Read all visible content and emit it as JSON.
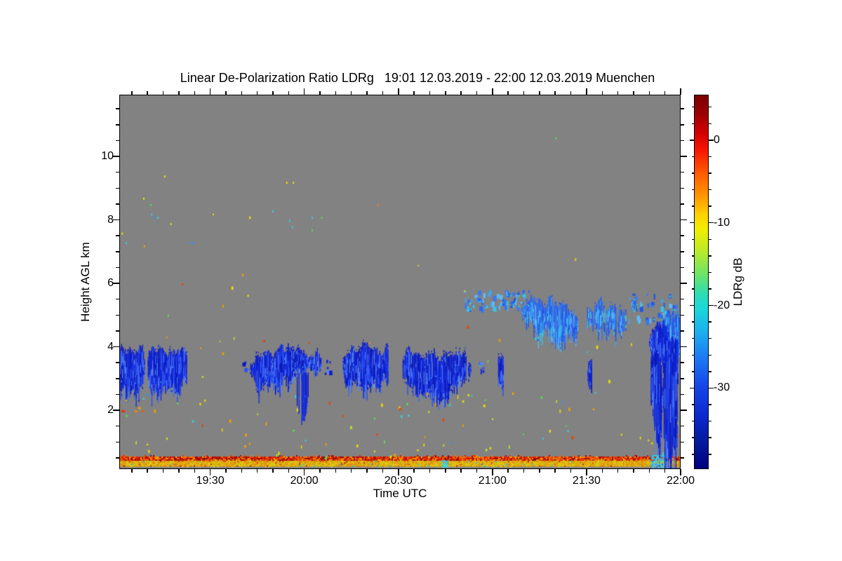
{
  "title": "Linear De-Polarization Ratio LDRg   19:01 12.03.2019 - 22:00 12.03.2019 Muenchen",
  "axes": {
    "x": {
      "label": "Time UTC",
      "start": "19:01",
      "end": "22:00",
      "major_ticks": [
        {
          "t_min": 30,
          "label": "19:30"
        },
        {
          "t_min": 60,
          "label": "20:00"
        },
        {
          "t_min": 90,
          "label": "20:30"
        },
        {
          "t_min": 120,
          "label": "21:00"
        },
        {
          "t_min": 150,
          "label": "21:30"
        },
        {
          "t_min": 180,
          "label": "22:00"
        }
      ],
      "minor_step_min": 5
    },
    "y": {
      "label": "Height AGL km",
      "min_km": 0.14,
      "max_km": 11.95,
      "major_ticks": [
        {
          "km": 2,
          "label": "2"
        },
        {
          "km": 4,
          "label": "4"
        },
        {
          "km": 6,
          "label": "6"
        },
        {
          "km": 8,
          "label": "8"
        },
        {
          "km": 10,
          "label": "10"
        }
      ],
      "minor_step_km": 0.5
    },
    "colorbar": {
      "label": "LDRg dB",
      "value_top_db": 5.5,
      "value_bottom_db": -39.8,
      "major_ticks": [
        {
          "db": 0,
          "label": "0"
        },
        {
          "db": -10,
          "label": "-10"
        },
        {
          "db": -20,
          "label": "-20"
        },
        {
          "db": -30,
          "label": "-30"
        }
      ],
      "minor_step_db": 2
    }
  },
  "chart_data": {
    "type": "heatmap",
    "title": "Linear De-Polarization Ratio LDRg 19:01 12.03.2019 - 22:00 12.03.2019 Muenchen",
    "station": "Muenchen",
    "date": "12.03.2019",
    "xlabel": "Time UTC",
    "ylabel": "Height AGL km",
    "x_range": [
      "19:01",
      "22:00"
    ],
    "y_range_km": [
      0.14,
      11.95
    ],
    "colorbar": {
      "label": "LDRg dB",
      "range_db": [
        -39.8,
        5.5
      ]
    },
    "background": "uniform gray = no signal / below detection",
    "features": {
      "cloud_layers": [
        {
          "id": "cloud-a",
          "time": "19:01-19:09",
          "t0": 1,
          "t1": 9,
          "h_top_km": 3.95,
          "h_bot_km": 2.75,
          "mode": "solid",
          "palette": "deepblue",
          "flat_left": true,
          "ldr_db": -32
        },
        {
          "id": "cloud-b",
          "time": "19:09-19:23",
          "t0": 9.5,
          "t1": 23,
          "h_top_km": 3.8,
          "h_bot_km": 2.85,
          "mode": "solid",
          "palette": "deepblue",
          "ldr_db": -32
        },
        {
          "id": "wisp-1",
          "time": "19:40-19:42",
          "t0": 40,
          "t1": 42,
          "h_top_km": 3.6,
          "h_bot_km": 3.25,
          "mode": "scatter",
          "density": 0.5,
          "palette": "deepblue",
          "ldr_db": -32
        },
        {
          "id": "cloud-c",
          "time": "19:43-20:06",
          "t0": 42.5,
          "t1": 66,
          "h_top_km": 3.9,
          "h_bot_km": 2.95,
          "mode": "solid",
          "palette": "deepblue",
          "top_profile": [
            [
              0,
              3.75
            ],
            [
              0.4,
              3.8
            ],
            [
              0.75,
              3.95
            ],
            [
              1,
              3.8
            ]
          ],
          "bot_profile": [
            [
              0,
              3.05
            ],
            [
              0.5,
              2.9
            ],
            [
              0.8,
              3.2
            ],
            [
              1,
              3.1
            ]
          ],
          "ldr_db": -32
        },
        {
          "id": "cloud-c-virga",
          "time": "19:57-20:01",
          "t0": 57,
          "t1": 61.5,
          "h_top_km": 3.1,
          "h_bot_km": 1.6,
          "mode": "virga",
          "palette": "deepblue",
          "ldr_db": -31
        },
        {
          "id": "cloud-c-wisp",
          "time": "20:06-20:08",
          "t0": 66,
          "t1": 68.5,
          "h_top_km": 3.6,
          "h_bot_km": 3.1,
          "mode": "scatter",
          "density": 0.55,
          "palette": "deepblue",
          "ldr_db": -32
        },
        {
          "id": "cloud-d",
          "time": "20:12-20:27",
          "t0": 72,
          "t1": 87.5,
          "h_top_km": 3.85,
          "h_bot_km": 2.9,
          "mode": "solid",
          "palette": "deepblue",
          "ldr_db": -32
        },
        {
          "id": "cloud-e",
          "time": "20:30-20:53",
          "t0": 90.5,
          "t1": 113,
          "h_top_km": 3.8,
          "h_bot_km": 2.8,
          "mode": "solid",
          "palette": "deepblue",
          "bot_profile": [
            [
              0,
              3.0
            ],
            [
              0.3,
              2.65
            ],
            [
              0.6,
              2.5
            ],
            [
              0.8,
              2.95
            ],
            [
              1,
              3.0
            ]
          ],
          "ldr_db": -32
        },
        {
          "id": "streak-1",
          "time": "20:55-20:57",
          "t0": 115.5,
          "t1": 117.5,
          "h_top_km": 3.55,
          "h_bot_km": 3.0,
          "mode": "scatter",
          "density": 0.6,
          "palette": "deepblue",
          "ldr_db": -31
        },
        {
          "id": "streak-2",
          "time": "21:01-21:03",
          "t0": 121.5,
          "t1": 123.5,
          "h_top_km": 3.6,
          "h_bot_km": 2.9,
          "mode": "solid",
          "palette": "deepblue",
          "ldr_db": -32
        },
        {
          "id": "upper-scatter-1",
          "time": "20:51-21:13",
          "t0": 111,
          "t1": 133,
          "h_top_km": 5.75,
          "h_bot_km": 5.15,
          "mode": "scatter",
          "density": 0.8,
          "palette": "midblue",
          "ldr_db": -26
        },
        {
          "id": "upper-main",
          "time": "21:09-21:28",
          "t0": 129,
          "t1": 148,
          "h_top_km": 5.45,
          "h_bot_km": 4.35,
          "mode": "solid",
          "palette": "midblue",
          "top_profile": [
            [
              0,
              5.3
            ],
            [
              0.35,
              5.45
            ],
            [
              0.7,
              5.2
            ],
            [
              1,
              4.95
            ]
          ],
          "bot_profile": [
            [
              0,
              5.0
            ],
            [
              0.3,
              4.6
            ],
            [
              0.6,
              4.35
            ],
            [
              1,
              4.6
            ]
          ],
          "ldr_db": -25
        },
        {
          "id": "upper-2",
          "time": "21:29-21:43",
          "t0": 149,
          "t1": 163,
          "h_top_km": 5.2,
          "h_bot_km": 4.5,
          "mode": "solid",
          "density": 0.78,
          "palette": "midblue",
          "ldr_db": -26
        },
        {
          "id": "upper-scatter-2",
          "time": "21:43-22:00",
          "t0": 163,
          "t1": 180,
          "h_top_km": 5.65,
          "h_bot_km": 4.75,
          "mode": "scatter",
          "density": 0.75,
          "palette": "midblue",
          "flat_right": true,
          "ldr_db": -26
        },
        {
          "id": "upper-right-patch",
          "time": "21:54-22:00",
          "t0": 174,
          "t1": 180,
          "h_top_km": 4.95,
          "h_bot_km": 4.1,
          "mode": "solid",
          "palette": "midblue",
          "flat_right": true,
          "ldr_db": -27
        },
        {
          "id": "precip-streak",
          "time": "21:30-21:31",
          "t0": 150.3,
          "t1": 151.6,
          "h_top_km": 3.5,
          "h_bot_km": 2.7,
          "mode": "solid",
          "palette": "deepblue",
          "ldr_db": -32
        },
        {
          "id": "precip-top",
          "time": "21:49-22:00",
          "t0": 170,
          "t1": 179.6,
          "h_top_km": 4.6,
          "h_bot_km": 3.25,
          "mode": "solid",
          "palette": "deepblue",
          "top_profile": [
            [
              0,
              4.5
            ],
            [
              0.5,
              4.65
            ],
            [
              1,
              4.3
            ]
          ],
          "bot_profile": [
            [
              0,
              3.6
            ],
            [
              0.5,
              3.25
            ],
            [
              1,
              3.2
            ]
          ],
          "ldr_db": -30
        },
        {
          "id": "precip-core-1",
          "time": "21:49-21:53",
          "t0": 170.2,
          "t1": 174,
          "h_top_km": 3.7,
          "h_bot_km": 1.05,
          "mode": "solid",
          "palette": "deepblue",
          "bot_profile": [
            [
              0,
              2.6
            ],
            [
              0.35,
              1.6
            ],
            [
              0.7,
              1.05
            ],
            [
              1,
              1.45
            ]
          ],
          "ldr_db": -31
        },
        {
          "id": "precip-core-2",
          "time": "21:53-21:58",
          "t0": 174.3,
          "t1": 178.8,
          "h_top_km": 3.7,
          "h_bot_km": 0.3,
          "mode": "solid",
          "palette": "deepblue",
          "bot_profile": [
            [
              0,
              1.3
            ],
            [
              0.25,
              0.5
            ],
            [
              0.55,
              0.3
            ],
            [
              0.8,
              1.0
            ],
            [
              1,
              0.55
            ]
          ],
          "ldr_db": -31
        }
      ],
      "surface_bands": [
        {
          "id": "band-red",
          "description": "speckled red near-surface layer, full time span",
          "h_top_km": 0.54,
          "h_bot_km": 0.42,
          "ldr_db_range": [
            -2,
            3
          ],
          "palette": "band_red",
          "accent": "band_red_accent",
          "accent_prob": 0.1
        },
        {
          "id": "band-yellow",
          "description": "speckled yellow-orange near-surface layer, full time span",
          "h_top_km": 0.4,
          "h_bot_km": 0.25,
          "ldr_db_range": [
            -12,
            -7
          ],
          "palette": "band_yellow",
          "accent": "band_yellow_accent",
          "accent_prob": 0.07
        }
      ],
      "ground_features": [
        {
          "id": "cyan-spot",
          "t": 104.6,
          "time": "20:45",
          "h_top_km": 0.42,
          "h_bot_km": 0.22,
          "half_width_min": 0.9,
          "palette": "cyan_patch",
          "ldr_db": -20
        },
        {
          "id": "cyan-ground-patch",
          "t0": 170.4,
          "t1": 174.6,
          "time": "21:49-21:54",
          "h_top_km": 0.58,
          "h_bot_km": 0.15,
          "palette": "cyan_patch",
          "ldr_db": -20
        }
      ],
      "noise_speckles": {
        "seed": 987654,
        "counts": {
          "low": 95,
          "mid": 30,
          "high": 6
        },
        "low_h_range": [
          0.55,
          2.6
        ],
        "mid_h_range": [
          2.65,
          5.9
        ],
        "high_h_range": [
          6.3,
          9.6
        ],
        "palette": "speckle",
        "explicit": [
          [
            15.3,
            9.4,
            "#e8e000"
          ],
          [
            54.2,
            9.2,
            "#e8e000"
          ],
          [
            56.3,
            9.2,
            "#e8e000"
          ],
          [
            8.6,
            8.7,
            "#e8e000"
          ],
          [
            10.8,
            8.5,
            "#58dc58"
          ],
          [
            11.1,
            8.2,
            "#38d0d0"
          ],
          [
            11.7,
            8.1,
            "#3a8cf0"
          ],
          [
            13.1,
            8.1,
            "#38d0d0"
          ],
          [
            17.3,
            7.9,
            "#b8e830"
          ],
          [
            83.3,
            8.5,
            "#f0781c"
          ],
          [
            49.8,
            8.3,
            "#38d0d0"
          ],
          [
            55.1,
            8.0,
            "#38d0d0"
          ],
          [
            62.3,
            8.1,
            "#38d0d0"
          ],
          [
            56.0,
            7.8,
            "#38d0d0"
          ],
          [
            62.3,
            7.7,
            "#58dc58"
          ],
          [
            1.7,
            7.6,
            "#e8e000"
          ],
          [
            3.0,
            7.3,
            "#38d0d0"
          ],
          [
            8.8,
            7.2,
            "#f0a000"
          ],
          [
            23.2,
            7.3,
            "#3a8cf0"
          ],
          [
            24.3,
            7.3,
            "#3a8cf0"
          ],
          [
            20.9,
            6.0,
            "#e84400"
          ],
          [
            140.0,
            10.6,
            "#58dc58"
          ],
          [
            1.7,
            2.0,
            "#e83000",
            5,
            3
          ],
          [
            5.9,
            2.0,
            "#f08000",
            4,
            3
          ],
          [
            7.0,
            2.1,
            "#f0a000",
            4,
            3
          ],
          [
            8.2,
            2.0,
            "#e86000",
            3,
            3
          ]
        ]
      }
    }
  },
  "colors": {
    "background": "#ffffff",
    "plot_background": "#828282",
    "frame": "#000000",
    "text": "#000000",
    "colorbar_gradient": [
      [
        "0%",
        "#7a0000"
      ],
      [
        "5%",
        "#9c0000"
      ],
      [
        "10%",
        "#d20000"
      ],
      [
        "15%",
        "#f81800"
      ],
      [
        "21%",
        "#ff5c00"
      ],
      [
        "27%",
        "#ff9600"
      ],
      [
        "32%",
        "#ffd200"
      ],
      [
        "36%",
        "#f0ee00"
      ],
      [
        "42%",
        "#b8ea2c"
      ],
      [
        "48%",
        "#6ce468"
      ],
      [
        "53%",
        "#30dcb0"
      ],
      [
        "57%",
        "#1ad8d8"
      ],
      [
        "63%",
        "#1cb2ee"
      ],
      [
        "70%",
        "#1d7cf4"
      ],
      [
        "78%",
        "#1546e8"
      ],
      [
        "86%",
        "#0c28cc"
      ],
      [
        "93%",
        "#051a9e"
      ],
      [
        "100%",
        "#00007f"
      ]
    ],
    "palettes": {
      "deepblue": {
        "base": [
          "#1024d8",
          "#0d1cc8",
          "#1530e8",
          "#0a18b8"
        ],
        "light": [
          "#2c50f0",
          "#3e6cf4",
          "#5585f8"
        ],
        "rare": [
          "#34c2ec",
          "#6ab0f8"
        ]
      },
      "midblue": {
        "base": [
          "#2b66ec",
          "#2456e4",
          "#3878f0"
        ],
        "light": [
          "#44a2f2",
          "#39c6ea",
          "#60b8f6"
        ],
        "rare": [
          "#28d8e0"
        ]
      },
      "cyan_patch": [
        "#2cd8ea",
        "#40c8f0",
        "#28b8ee",
        "#34e0e8"
      ],
      "band_red": [
        "#d81800",
        "#c41000",
        "#ee3c00",
        "#a80800",
        "#f05800",
        "#e82a00",
        "#8f0400",
        "#f07c00"
      ],
      "band_red_accent": [
        "#f09000",
        "#ffb400"
      ],
      "band_yellow": [
        "#f0c800",
        "#eeb400",
        "#f0a200",
        "#e8d400",
        "#ec9000",
        "#d8c000"
      ],
      "band_yellow_accent": [
        "#e84c00",
        "#d82000",
        "#30d0d0"
      ],
      "speckle": {
        "colors": [
          "#e8e000",
          "#f0a000",
          "#58dc58",
          "#e84400",
          "#38d0d0",
          "#3a8cf0",
          "#b8e830"
        ],
        "weights": [
          0.3,
          0.2,
          0.15,
          0.12,
          0.1,
          0.05,
          0.08
        ]
      }
    }
  }
}
